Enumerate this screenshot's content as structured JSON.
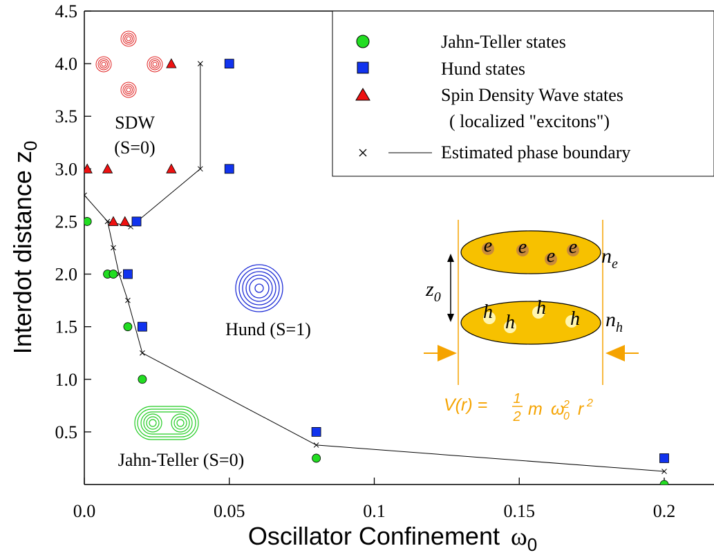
{
  "chart_data": {
    "type": "scatter",
    "xlabel": "Oscillator Confinement",
    "xlabel_symbol": "ω",
    "xlabel_sub": "0",
    "ylabel": "Interdot distance",
    "ylabel_symbol": "z",
    "ylabel_sub": "0",
    "xlim": [
      0.0,
      0.2
    ],
    "ylim": [
      0.0,
      4.5
    ],
    "x_ticks": [
      {
        "value": 0.0,
        "label": "0.0"
      },
      {
        "value": 0.05,
        "label": "0.05"
      },
      {
        "value": 0.1,
        "label": "0.1"
      },
      {
        "value": 0.15,
        "label": "0.15"
      },
      {
        "value": 0.2,
        "label": "0.2"
      }
    ],
    "y_ticks": [
      {
        "value": 0.5,
        "label": "0.5"
      },
      {
        "value": 1.0,
        "label": "1.0"
      },
      {
        "value": 1.5,
        "label": "1.5"
      },
      {
        "value": 2.0,
        "label": "2.0"
      },
      {
        "value": 2.5,
        "label": "2.5"
      },
      {
        "value": 3.0,
        "label": "3.0"
      },
      {
        "value": 3.5,
        "label": "3.5"
      },
      {
        "value": 4.0,
        "label": "4.0"
      },
      {
        "value": 4.5,
        "label": "4.5"
      }
    ],
    "legend_position": "top-right",
    "legend": [
      {
        "marker": "circle",
        "label": "Jahn-Teller states"
      },
      {
        "marker": "square",
        "label": "Hund states"
      },
      {
        "marker": "triangle",
        "label": "Spin Density Wave states"
      },
      {
        "marker": "none",
        "label": "( localized \"excitons\")"
      },
      {
        "marker": "cross-line",
        "label": "Estimated phase boundary"
      }
    ],
    "series": [
      {
        "name": "Jahn-Teller states",
        "marker": "circle",
        "color": "#22dd22",
        "points": [
          [
            0.001,
            2.5
          ],
          [
            0.008,
            2.0
          ],
          [
            0.01,
            2.0
          ],
          [
            0.015,
            1.5
          ],
          [
            0.02,
            1.0
          ],
          [
            0.08,
            0.25
          ],
          [
            0.2,
            0.0
          ]
        ]
      },
      {
        "name": "Hund states",
        "marker": "square",
        "color": "#1133ee",
        "points": [
          [
            0.05,
            4.0
          ],
          [
            0.05,
            3.0
          ],
          [
            0.018,
            2.5
          ],
          [
            0.015,
            2.0
          ],
          [
            0.02,
            1.5
          ],
          [
            0.08,
            0.5
          ],
          [
            0.2,
            0.25
          ]
        ]
      },
      {
        "name": "Spin Density Wave states",
        "marker": "triangle",
        "color": "#ee1111",
        "points": [
          [
            0.03,
            4.0
          ],
          [
            0.001,
            3.0
          ],
          [
            0.008,
            3.0
          ],
          [
            0.03,
            3.0
          ],
          [
            0.01,
            2.5
          ],
          [
            0.014,
            2.5
          ]
        ]
      },
      {
        "name": "Estimated phase boundary",
        "marker": "cross",
        "color": "#000000",
        "points": [
          [
            0.04,
            4.0
          ],
          [
            0.04,
            3.0
          ],
          [
            0.016,
            2.45
          ],
          [
            0.008,
            2.5
          ],
          [
            0.0,
            2.75
          ],
          [
            0.008,
            2.5
          ],
          [
            0.01,
            2.25
          ],
          [
            0.012,
            2.0
          ],
          [
            0.015,
            1.75
          ],
          [
            0.02,
            1.25
          ],
          [
            0.08,
            0.375
          ],
          [
            0.2,
            0.125
          ]
        ]
      }
    ],
    "region_labels": [
      {
        "text": "SDW",
        "text2": "(S=0)"
      },
      {
        "text": "Hund (S=1)"
      },
      {
        "text": "Jahn-Teller (S=0)"
      }
    ],
    "inset": {
      "electron_label": "e",
      "hole_label": "h",
      "ne_label": "n",
      "ne_sub": "e",
      "nh_label": "n",
      "nh_sub": "h",
      "z_label": "z",
      "z_sub": "0",
      "potential_lhs": "V(r) = ",
      "potential_num": "1",
      "potential_den": "2",
      "potential_m": "m",
      "potential_omega": "ω",
      "potential_omega_sup": "2",
      "potential_omega_sub": "0",
      "potential_r": "r",
      "potential_r_sup": "2",
      "accent_color": "#f5a300",
      "disk_color": "#f7c100"
    }
  }
}
